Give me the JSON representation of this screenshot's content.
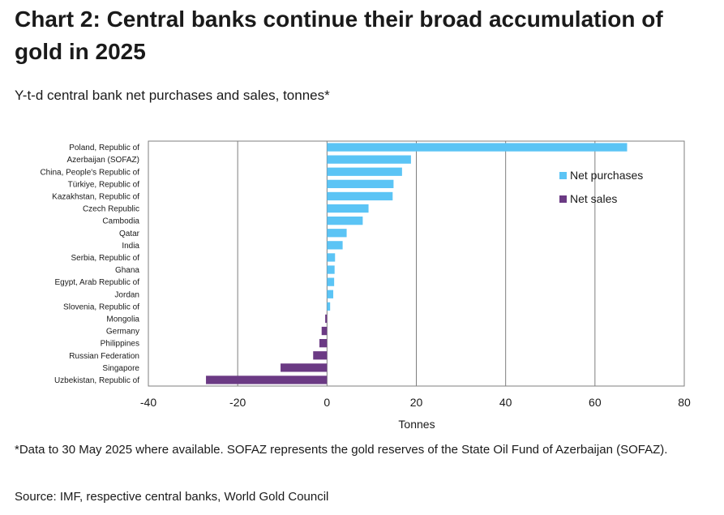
{
  "header": {
    "title": "Chart 2: Central banks continue their broad accumulation of gold in 2025",
    "subtitle": "Y-t-d central bank net purchases and sales, tonnes*"
  },
  "footer": {
    "footnote": "*Data to 30 May 2025 where available. SOFAZ represents the gold reserves of the State Oil Fund of Azerbaijan (SOFAZ).",
    "source": "Source: IMF, respective central banks, World Gold Council"
  },
  "chart_data": {
    "type": "bar",
    "orientation": "horizontal",
    "categories": [
      "Poland, Republic of",
      "Azerbaijan (SOFAZ)",
      "China, People's Republic of",
      "Türkiye, Republic of",
      "Kazakhstan, Republic of",
      "Czech Republic",
      "Cambodia",
      "Qatar",
      "India",
      "Serbia, Republic of",
      "Ghana",
      "Egypt, Arab Republic of",
      "Jordan",
      "Slovenia, Republic of",
      "Mongolia",
      "Germany",
      "Philippines",
      "Russian Federation",
      "Singapore",
      "Uzbekistan, Republic of"
    ],
    "values": [
      67.2,
      18.8,
      16.8,
      14.9,
      14.7,
      9.3,
      8.0,
      4.4,
      3.5,
      1.8,
      1.7,
      1.6,
      1.4,
      0.7,
      -0.4,
      -1.2,
      -1.7,
      -3.1,
      -10.4,
      -27.1
    ],
    "legend": [
      {
        "name": "Net purchases",
        "color": "#5bc4f5"
      },
      {
        "name": "Net sales",
        "color": "#6b3a84"
      }
    ],
    "legend_position": "top-right",
    "xlabel": "Tonnes",
    "xlim": [
      -40,
      80
    ],
    "xticks": [
      -40,
      -20,
      0,
      20,
      40,
      60,
      80
    ],
    "grid": "vertical"
  }
}
